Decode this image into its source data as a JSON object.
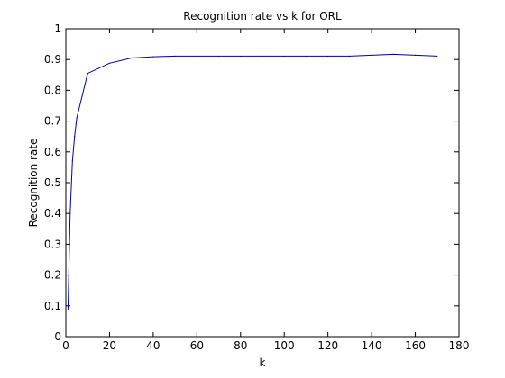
{
  "chart_data": {
    "type": "line",
    "title": "Recognition rate vs k for ORL",
    "xlabel": "k",
    "ylabel": "Recognition rate",
    "xlim": [
      0,
      180
    ],
    "ylim": [
      0,
      1
    ],
    "x_ticks": [
      0,
      20,
      40,
      60,
      80,
      100,
      120,
      140,
      160,
      180
    ],
    "y_ticks": [
      0,
      0.1,
      0.2,
      0.3,
      0.4,
      0.5,
      0.6,
      0.7,
      0.8,
      0.9,
      1
    ],
    "x_tick_labels": [
      "0",
      "20",
      "40",
      "60",
      "80",
      "100",
      "120",
      "140",
      "160",
      "180"
    ],
    "y_tick_labels": [
      "0",
      "0.1",
      "0.2",
      "0.3",
      "0.4",
      "0.5",
      "0.6",
      "0.7",
      "0.8",
      "0.9",
      "1"
    ],
    "grid": false,
    "series": [
      {
        "color": "#0000aa",
        "x": [
          1,
          2,
          3,
          4,
          5,
          10,
          20,
          30,
          40,
          50,
          60,
          70,
          80,
          90,
          100,
          110,
          120,
          130,
          140,
          150,
          160,
          170
        ],
        "y": [
          0.09,
          0.4,
          0.57,
          0.65,
          0.71,
          0.855,
          0.888,
          0.905,
          0.909,
          0.911,
          0.911,
          0.911,
          0.911,
          0.911,
          0.911,
          0.911,
          0.911,
          0.911,
          0.914,
          0.917,
          0.914,
          0.911
        ]
      }
    ]
  }
}
